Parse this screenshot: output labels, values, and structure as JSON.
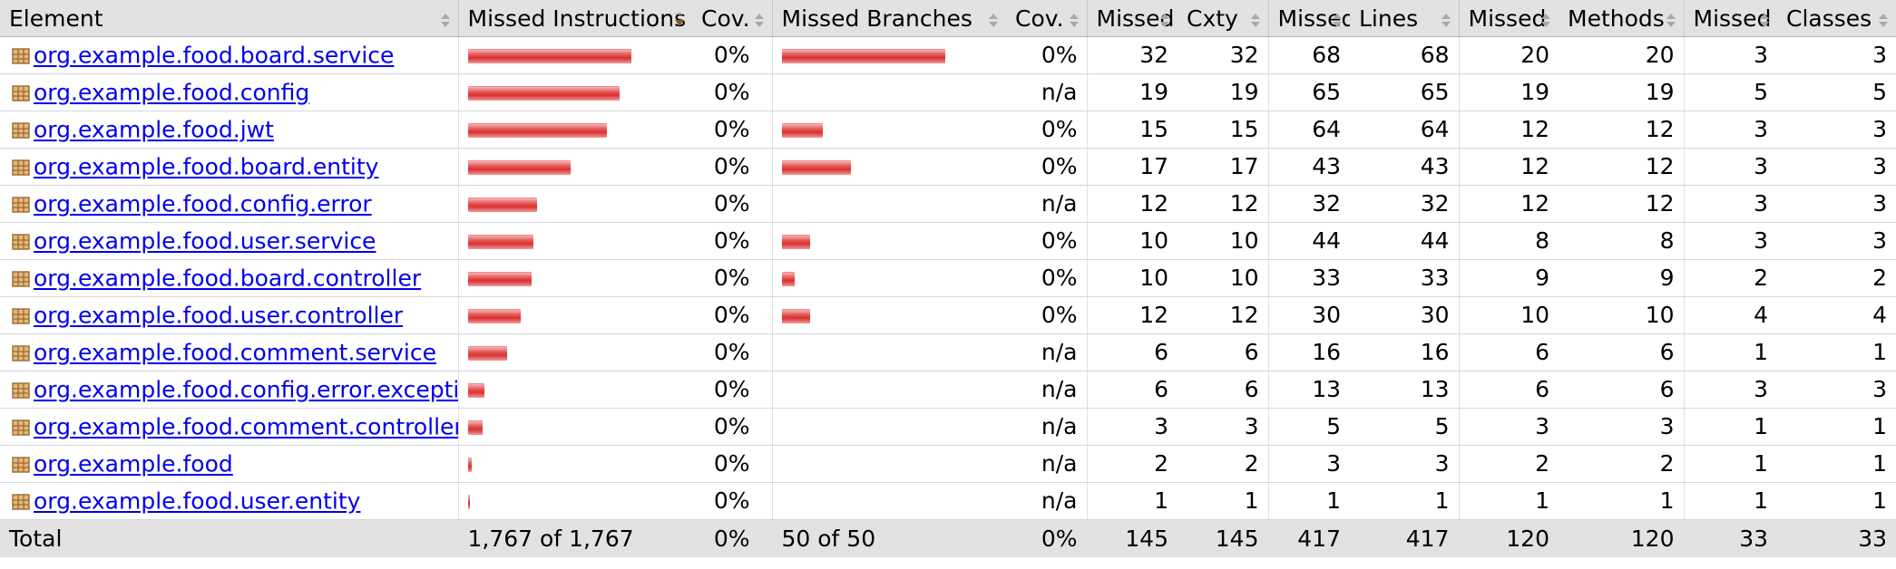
{
  "headers": {
    "element": "Element",
    "missed_instructions": "Missed Instructions",
    "cov1": "Cov.",
    "missed_branches": "Missed Branches",
    "cov2": "Cov.",
    "missed_cxty": "Missed",
    "cxty": "Cxty",
    "missed_lines": "Missed",
    "lines": "Lines",
    "missed_methods": "Missed",
    "methods": "Methods",
    "missed_classes": "Missed",
    "classes": "Classes"
  },
  "colors": {
    "header_bg": "#e2e2e2",
    "bar_red": "#d93030",
    "link": "#0000ee"
  },
  "rows": [
    {
      "element": "org.example.food.board.service",
      "instr_ratio": 1.0,
      "cov1": "0%",
      "branch_ratio": 1.0,
      "cov2": "0%",
      "missed_cxty": "32",
      "cxty": "32",
      "missed_lines": "68",
      "lines": "68",
      "missed_methods": "20",
      "methods": "20",
      "missed_classes": "3",
      "classes": "3"
    },
    {
      "element": "org.example.food.config",
      "instr_ratio": 0.93,
      "cov1": "0%",
      "branch_ratio": 0,
      "cov2": "n/a",
      "missed_cxty": "19",
      "cxty": "19",
      "missed_lines": "65",
      "lines": "65",
      "missed_methods": "19",
      "methods": "19",
      "missed_classes": "5",
      "classes": "5"
    },
    {
      "element": "org.example.food.jwt",
      "instr_ratio": 0.85,
      "cov1": "0%",
      "branch_ratio": 0.25,
      "cov2": "0%",
      "missed_cxty": "15",
      "cxty": "15",
      "missed_lines": "64",
      "lines": "64",
      "missed_methods": "12",
      "methods": "12",
      "missed_classes": "3",
      "classes": "3"
    },
    {
      "element": "org.example.food.board.entity",
      "instr_ratio": 0.63,
      "cov1": "0%",
      "branch_ratio": 0.42,
      "cov2": "0%",
      "missed_cxty": "17",
      "cxty": "17",
      "missed_lines": "43",
      "lines": "43",
      "missed_methods": "12",
      "methods": "12",
      "missed_classes": "3",
      "classes": "3"
    },
    {
      "element": "org.example.food.config.error",
      "instr_ratio": 0.42,
      "cov1": "0%",
      "branch_ratio": 0,
      "cov2": "n/a",
      "missed_cxty": "12",
      "cxty": "12",
      "missed_lines": "32",
      "lines": "32",
      "missed_methods": "12",
      "methods": "12",
      "missed_classes": "3",
      "classes": "3"
    },
    {
      "element": "org.example.food.user.service",
      "instr_ratio": 0.4,
      "cov1": "0%",
      "branch_ratio": 0.17,
      "cov2": "0%",
      "missed_cxty": "10",
      "cxty": "10",
      "missed_lines": "44",
      "lines": "44",
      "missed_methods": "8",
      "methods": "8",
      "missed_classes": "3",
      "classes": "3"
    },
    {
      "element": "org.example.food.board.controller",
      "instr_ratio": 0.39,
      "cov1": "0%",
      "branch_ratio": 0.08,
      "cov2": "0%",
      "missed_cxty": "10",
      "cxty": "10",
      "missed_lines": "33",
      "lines": "33",
      "missed_methods": "9",
      "methods": "9",
      "missed_classes": "2",
      "classes": "2"
    },
    {
      "element": "org.example.food.user.controller",
      "instr_ratio": 0.32,
      "cov1": "0%",
      "branch_ratio": 0.17,
      "cov2": "0%",
      "missed_cxty": "12",
      "cxty": "12",
      "missed_lines": "30",
      "lines": "30",
      "missed_methods": "10",
      "methods": "10",
      "missed_classes": "4",
      "classes": "4"
    },
    {
      "element": "org.example.food.comment.service",
      "instr_ratio": 0.24,
      "cov1": "0%",
      "branch_ratio": 0,
      "cov2": "n/a",
      "missed_cxty": "6",
      "cxty": "6",
      "missed_lines": "16",
      "lines": "16",
      "missed_methods": "6",
      "methods": "6",
      "missed_classes": "1",
      "classes": "1"
    },
    {
      "element": "org.example.food.config.error.exception",
      "instr_ratio": 0.1,
      "cov1": "0%",
      "branch_ratio": 0,
      "cov2": "n/a",
      "missed_cxty": "6",
      "cxty": "6",
      "missed_lines": "13",
      "lines": "13",
      "missed_methods": "6",
      "methods": "6",
      "missed_classes": "3",
      "classes": "3"
    },
    {
      "element": "org.example.food.comment.controller",
      "instr_ratio": 0.09,
      "cov1": "0%",
      "branch_ratio": 0,
      "cov2": "n/a",
      "missed_cxty": "3",
      "cxty": "3",
      "missed_lines": "5",
      "lines": "5",
      "missed_methods": "3",
      "methods": "3",
      "missed_classes": "1",
      "classes": "1"
    },
    {
      "element": "org.example.food",
      "instr_ratio": 0.02,
      "cov1": "0%",
      "branch_ratio": 0,
      "cov2": "n/a",
      "missed_cxty": "2",
      "cxty": "2",
      "missed_lines": "3",
      "lines": "3",
      "missed_methods": "2",
      "methods": "2",
      "missed_classes": "1",
      "classes": "1"
    },
    {
      "element": "org.example.food.user.entity",
      "instr_ratio": 0.01,
      "cov1": "0%",
      "branch_ratio": 0,
      "cov2": "n/a",
      "missed_cxty": "1",
      "cxty": "1",
      "missed_lines": "1",
      "lines": "1",
      "missed_methods": "1",
      "methods": "1",
      "missed_classes": "1",
      "classes": "1"
    }
  ],
  "total": {
    "label": "Total",
    "missed_instructions": "1,767 of 1,767",
    "cov1": "0%",
    "missed_branches": "50 of 50",
    "cov2": "0%",
    "missed_cxty": "145",
    "cxty": "145",
    "missed_lines": "417",
    "lines": "417",
    "missed_methods": "120",
    "methods": "120",
    "missed_classes": "33",
    "classes": "33"
  }
}
